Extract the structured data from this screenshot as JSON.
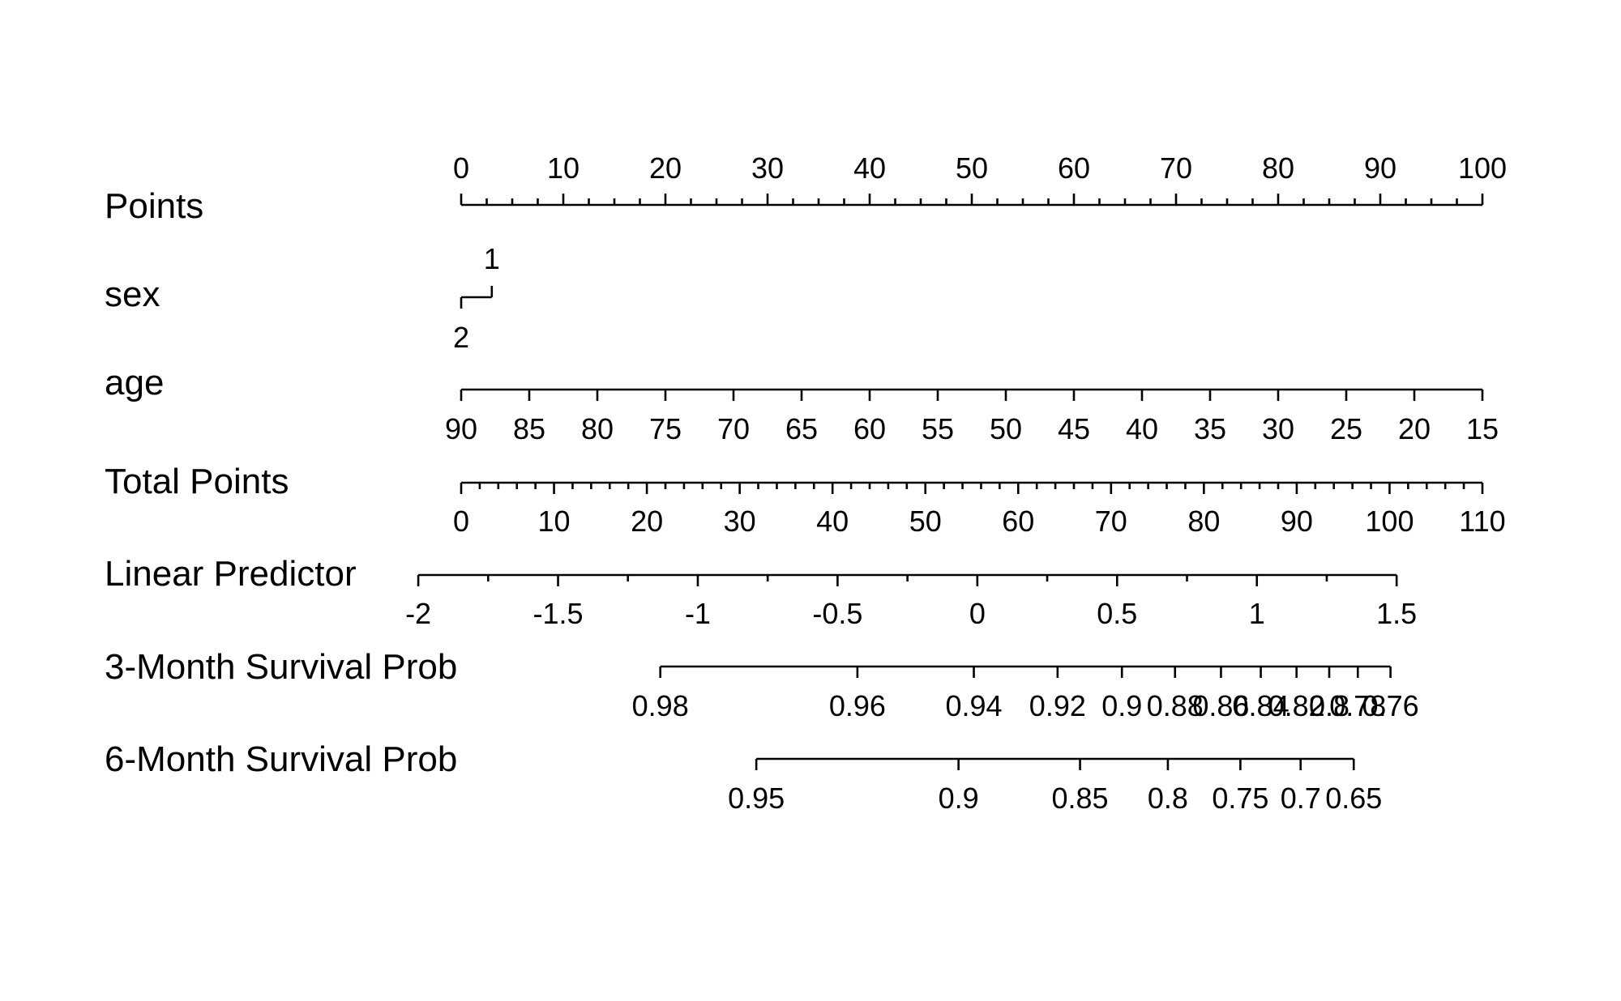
{
  "chart_data": {
    "type": "nomogram",
    "rows": [
      {
        "id": "points",
        "label": "Points",
        "labels_side": "above",
        "major": [
          {
            "value": 0,
            "text": "0"
          },
          {
            "value": 10,
            "text": "10"
          },
          {
            "value": 20,
            "text": "20"
          },
          {
            "value": 30,
            "text": "30"
          },
          {
            "value": 40,
            "text": "40"
          },
          {
            "value": 50,
            "text": "50"
          },
          {
            "value": 60,
            "text": "60"
          },
          {
            "value": 70,
            "text": "70"
          },
          {
            "value": 80,
            "text": "80"
          },
          {
            "value": 90,
            "text": "90"
          },
          {
            "value": 100,
            "text": "100"
          }
        ],
        "minor_step": 2.5,
        "range": [
          0,
          100
        ],
        "points_range": [
          0,
          100
        ]
      },
      {
        "id": "sex",
        "label": "sex",
        "type": "categorical",
        "levels": [
          {
            "text": "2",
            "points": 0,
            "side": "below"
          },
          {
            "text": "1",
            "points": 3,
            "side": "above"
          }
        ]
      },
      {
        "id": "age",
        "label": "age",
        "labels_side": "below",
        "major": [
          {
            "value": 90,
            "text": "90"
          },
          {
            "value": 85,
            "text": "85"
          },
          {
            "value": 80,
            "text": "80"
          },
          {
            "value": 75,
            "text": "75"
          },
          {
            "value": 70,
            "text": "70"
          },
          {
            "value": 65,
            "text": "65"
          },
          {
            "value": 60,
            "text": "60"
          },
          {
            "value": 55,
            "text": "55"
          },
          {
            "value": 50,
            "text": "50"
          },
          {
            "value": 45,
            "text": "45"
          },
          {
            "value": 40,
            "text": "40"
          },
          {
            "value": 35,
            "text": "35"
          },
          {
            "value": 30,
            "text": "30"
          },
          {
            "value": 25,
            "text": "25"
          },
          {
            "value": 20,
            "text": "20"
          },
          {
            "value": 15,
            "text": "15"
          }
        ],
        "range": [
          90,
          15
        ],
        "points_range": [
          0,
          100
        ]
      },
      {
        "id": "total-points",
        "label": "Total Points",
        "labels_side": "below",
        "major": [
          {
            "value": 0,
            "text": "0"
          },
          {
            "value": 10,
            "text": "10"
          },
          {
            "value": 20,
            "text": "20"
          },
          {
            "value": 30,
            "text": "30"
          },
          {
            "value": 40,
            "text": "40"
          },
          {
            "value": 50,
            "text": "50"
          },
          {
            "value": 60,
            "text": "60"
          },
          {
            "value": 70,
            "text": "70"
          },
          {
            "value": 80,
            "text": "80"
          },
          {
            "value": 90,
            "text": "90"
          },
          {
            "value": 100,
            "text": "100"
          },
          {
            "value": 110,
            "text": "110"
          }
        ],
        "minor_step": 2,
        "range": [
          0,
          110
        ],
        "points_range": [
          0,
          100
        ]
      },
      {
        "id": "linear-predictor",
        "label": "Linear Predictor",
        "labels_side": "below",
        "major": [
          {
            "value": -2,
            "text": "-2"
          },
          {
            "value": -1.5,
            "text": "-1.5"
          },
          {
            "value": -1,
            "text": "-1"
          },
          {
            "value": -0.5,
            "text": "-0.5"
          },
          {
            "value": 0,
            "text": "0"
          },
          {
            "value": 0.5,
            "text": "0.5"
          },
          {
            "value": 1,
            "text": "1"
          },
          {
            "value": 1.5,
            "text": "1.5"
          }
        ],
        "minor_step": 0.25,
        "range": [
          -2,
          1.5
        ],
        "points_range": [
          -4.2,
          91.6
        ]
      },
      {
        "id": "survival-3m",
        "label": "3-Month Survival Prob",
        "labels_side": "below",
        "major": [
          {
            "value": 0.98,
            "points": 19.5,
            "text": "0.98"
          },
          {
            "value": 0.96,
            "points": 38.8,
            "text": "0.96"
          },
          {
            "value": 0.94,
            "points": 50.2,
            "text": "0.94"
          },
          {
            "value": 0.92,
            "points": 58.4,
            "text": "0.92"
          },
          {
            "value": 0.9,
            "points": 64.7,
            "text": "0.9"
          },
          {
            "value": 0.88,
            "points": 69.9,
            "text": "0.88"
          },
          {
            "value": 0.86,
            "points": 74.4,
            "text": "0.86"
          },
          {
            "value": 0.84,
            "points": 78.3,
            "text": "0.84"
          },
          {
            "value": 0.82,
            "points": 81.8,
            "text": "0.82"
          },
          {
            "value": 0.8,
            "points": 85.0,
            "text": "0.8"
          },
          {
            "value": 0.78,
            "points": 87.8,
            "text": "0.78"
          },
          {
            "value": 0.76,
            "points": 91.0,
            "text": "0.76"
          }
        ]
      },
      {
        "id": "survival-6m",
        "label": "6-Month Survival Prob",
        "labels_side": "below",
        "major": [
          {
            "value": 0.95,
            "points": 28.9,
            "text": "0.95"
          },
          {
            "value": 0.9,
            "points": 48.7,
            "text": "0.9"
          },
          {
            "value": 0.85,
            "points": 60.6,
            "text": "0.85"
          },
          {
            "value": 0.8,
            "points": 69.2,
            "text": "0.8"
          },
          {
            "value": 0.75,
            "points": 76.3,
            "text": "0.75"
          },
          {
            "value": 0.7,
            "points": 82.2,
            "text": "0.7"
          },
          {
            "value": 0.65,
            "points": 87.4,
            "text": "0.65"
          }
        ]
      }
    ]
  }
}
